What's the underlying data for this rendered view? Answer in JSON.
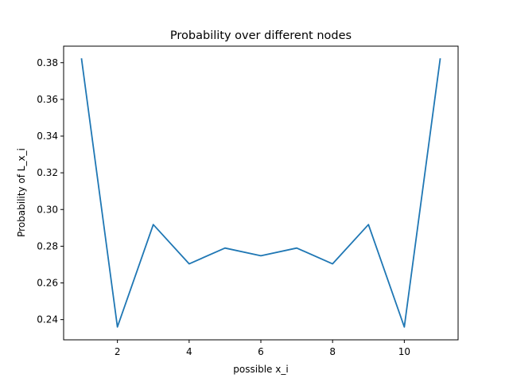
{
  "chart_data": {
    "type": "line",
    "title": "Probability over different nodes",
    "xlabel": "possible x_i",
    "ylabel": "Probability of L_x_i",
    "xlim": [
      0.5,
      11.5
    ],
    "ylim": [
      0.229,
      0.389
    ],
    "xticks": [
      2,
      4,
      6,
      8,
      10
    ],
    "yticks": [
      0.24,
      0.26,
      0.28,
      0.3,
      0.32,
      0.34,
      0.36,
      0.38
    ],
    "ytick_labels": [
      "0.24",
      "0.26",
      "0.28",
      "0.30",
      "0.32",
      "0.34",
      "0.36",
      "0.38"
    ],
    "grid": false,
    "series": [
      {
        "color": "#1f77b4",
        "x": [
          1,
          2,
          3,
          4,
          5,
          6,
          7,
          8,
          9,
          10,
          11
        ],
        "y": [
          0.382,
          0.236,
          0.2918,
          0.2704,
          0.279,
          0.2748,
          0.279,
          0.2704,
          0.2918,
          0.236,
          0.382
        ]
      }
    ]
  }
}
